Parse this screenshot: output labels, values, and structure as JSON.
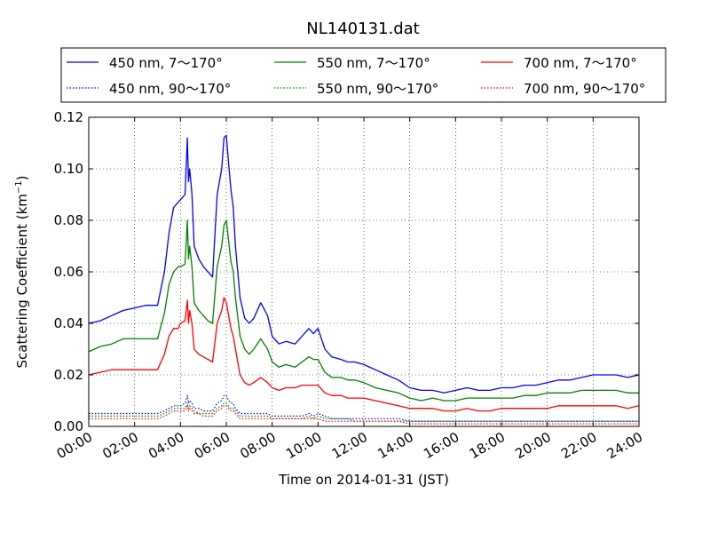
{
  "chart_data": {
    "type": "line",
    "title": "NL140131.dat",
    "xlabel": "Time on 2014-01-31 (JST)",
    "ylabel_main": "Scattering Coefficient (km",
    "ylabel_sup": "−1",
    "ylabel_end": ")",
    "xlim": [
      "00:00",
      "24:00"
    ],
    "ylim": [
      0,
      0.12
    ],
    "grid": true,
    "legend_position": "top, above plot",
    "x_ticks": [
      "00:00",
      "02:00",
      "04:00",
      "06:00",
      "08:00",
      "10:00",
      "12:00",
      "14:00",
      "16:00",
      "18:00",
      "20:00",
      "22:00",
      "24:00"
    ],
    "y_ticks": [
      "0.00",
      "0.02",
      "0.04",
      "0.06",
      "0.08",
      "0.10",
      "0.12"
    ],
    "y_tick_values": [
      0,
      0.02,
      0.04,
      0.06,
      0.08,
      0.1,
      0.12
    ],
    "x_hours": [
      0,
      0.5,
      1,
      1.5,
      2,
      2.5,
      3,
      3.3,
      3.5,
      3.7,
      3.9,
      4,
      4.2,
      4.3,
      4.35,
      4.4,
      4.5,
      4.6,
      4.8,
      5,
      5.2,
      5.4,
      5.6,
      5.8,
      5.9,
      6,
      6.1,
      6.2,
      6.3,
      6.4,
      6.6,
      6.8,
      7,
      7.2,
      7.5,
      7.8,
      8,
      8.3,
      8.6,
      9,
      9.3,
      9.6,
      9.8,
      10,
      10.3,
      10.6,
      11,
      11.3,
      11.6,
      12,
      12.5,
      13,
      13.5,
      14,
      14.5,
      15,
      15.5,
      16,
      16.5,
      17,
      17.5,
      18,
      18.5,
      19,
      19.5,
      20,
      20.5,
      21,
      21.5,
      22,
      22.5,
      23,
      23.5,
      24
    ],
    "series": [
      {
        "name": "450 nm, 7～170°",
        "color": "#0000ff",
        "style": "solid",
        "values": [
          0.04,
          0.041,
          0.043,
          0.045,
          0.046,
          0.047,
          0.047,
          0.06,
          0.075,
          0.085,
          0.087,
          0.088,
          0.09,
          0.112,
          0.095,
          0.1,
          0.09,
          0.07,
          0.065,
          0.062,
          0.06,
          0.058,
          0.09,
          0.1,
          0.112,
          0.113,
          0.102,
          0.092,
          0.085,
          0.07,
          0.05,
          0.042,
          0.04,
          0.042,
          0.048,
          0.043,
          0.035,
          0.032,
          0.033,
          0.032,
          0.035,
          0.038,
          0.036,
          0.038,
          0.03,
          0.027,
          0.026,
          0.025,
          0.025,
          0.024,
          0.022,
          0.02,
          0.018,
          0.015,
          0.014,
          0.014,
          0.013,
          0.014,
          0.015,
          0.014,
          0.014,
          0.015,
          0.015,
          0.016,
          0.016,
          0.017,
          0.018,
          0.018,
          0.019,
          0.02,
          0.02,
          0.02,
          0.019,
          0.02
        ]
      },
      {
        "name": "550 nm, 7～170°",
        "color": "#008000",
        "style": "solid",
        "values": [
          0.029,
          0.031,
          0.032,
          0.034,
          0.034,
          0.034,
          0.034,
          0.044,
          0.055,
          0.06,
          0.062,
          0.062,
          0.063,
          0.08,
          0.065,
          0.07,
          0.062,
          0.048,
          0.045,
          0.043,
          0.041,
          0.04,
          0.062,
          0.07,
          0.078,
          0.08,
          0.072,
          0.064,
          0.06,
          0.05,
          0.035,
          0.03,
          0.028,
          0.03,
          0.034,
          0.03,
          0.025,
          0.023,
          0.024,
          0.023,
          0.025,
          0.027,
          0.026,
          0.026,
          0.021,
          0.019,
          0.019,
          0.018,
          0.018,
          0.017,
          0.015,
          0.014,
          0.013,
          0.011,
          0.01,
          0.011,
          0.01,
          0.01,
          0.011,
          0.011,
          0.011,
          0.011,
          0.011,
          0.012,
          0.012,
          0.013,
          0.013,
          0.013,
          0.014,
          0.014,
          0.014,
          0.014,
          0.013,
          0.013
        ]
      },
      {
        "name": "700 nm, 7～170°",
        "color": "#ff0000",
        "style": "solid",
        "values": [
          0.02,
          0.021,
          0.022,
          0.022,
          0.022,
          0.022,
          0.022,
          0.028,
          0.035,
          0.038,
          0.038,
          0.04,
          0.041,
          0.049,
          0.04,
          0.045,
          0.04,
          0.03,
          0.028,
          0.027,
          0.026,
          0.025,
          0.04,
          0.045,
          0.05,
          0.048,
          0.043,
          0.038,
          0.035,
          0.03,
          0.02,
          0.017,
          0.016,
          0.017,
          0.019,
          0.017,
          0.015,
          0.014,
          0.015,
          0.015,
          0.016,
          0.016,
          0.016,
          0.016,
          0.013,
          0.012,
          0.012,
          0.011,
          0.011,
          0.011,
          0.01,
          0.009,
          0.008,
          0.007,
          0.007,
          0.007,
          0.006,
          0.006,
          0.007,
          0.006,
          0.006,
          0.007,
          0.007,
          0.007,
          0.007,
          0.007,
          0.008,
          0.008,
          0.008,
          0.008,
          0.008,
          0.008,
          0.007,
          0.008
        ]
      },
      {
        "name": "450 nm, 90～170°",
        "color": "#0000ff",
        "style": "dotted",
        "values": [
          0.005,
          0.005,
          0.005,
          0.005,
          0.005,
          0.005,
          0.005,
          0.006,
          0.007,
          0.008,
          0.008,
          0.008,
          0.009,
          0.012,
          0.009,
          0.01,
          0.009,
          0.007,
          0.007,
          0.006,
          0.006,
          0.006,
          0.009,
          0.01,
          0.012,
          0.012,
          0.01,
          0.009,
          0.009,
          0.007,
          0.005,
          0.005,
          0.005,
          0.005,
          0.005,
          0.005,
          0.004,
          0.004,
          0.004,
          0.004,
          0.004,
          0.005,
          0.004,
          0.005,
          0.004,
          0.003,
          0.003,
          0.003,
          0.003,
          0.003,
          0.003,
          0.003,
          0.003,
          0.002,
          0.002,
          0.002,
          0.002,
          0.002,
          0.002,
          0.002,
          0.002,
          0.002,
          0.002,
          0.002,
          0.002,
          0.002,
          0.002,
          0.002,
          0.002,
          0.002,
          0.002,
          0.002,
          0.002,
          0.002
        ]
      },
      {
        "name": "550 nm, 90～170°",
        "color": "#008000",
        "style": "dotted",
        "values": [
          0.004,
          0.004,
          0.004,
          0.004,
          0.004,
          0.004,
          0.004,
          0.005,
          0.006,
          0.007,
          0.007,
          0.007,
          0.007,
          0.009,
          0.007,
          0.008,
          0.007,
          0.006,
          0.005,
          0.005,
          0.005,
          0.005,
          0.007,
          0.008,
          0.009,
          0.009,
          0.008,
          0.007,
          0.007,
          0.006,
          0.004,
          0.004,
          0.004,
          0.004,
          0.004,
          0.004,
          0.003,
          0.003,
          0.003,
          0.003,
          0.003,
          0.004,
          0.003,
          0.004,
          0.003,
          0.003,
          0.003,
          0.003,
          0.002,
          0.002,
          0.002,
          0.002,
          0.002,
          0.002,
          0.002,
          0.002,
          0.002,
          0.002,
          0.002,
          0.002,
          0.002,
          0.002,
          0.002,
          0.002,
          0.002,
          0.002,
          0.002,
          0.002,
          0.002,
          0.002,
          0.002,
          0.002,
          0.002,
          0.002
        ]
      },
      {
        "name": "700 nm, 90～170°",
        "color": "#ff0000",
        "style": "dotted",
        "values": [
          0.003,
          0.003,
          0.003,
          0.003,
          0.003,
          0.003,
          0.003,
          0.004,
          0.005,
          0.006,
          0.006,
          0.006,
          0.006,
          0.008,
          0.006,
          0.007,
          0.006,
          0.005,
          0.005,
          0.004,
          0.004,
          0.004,
          0.006,
          0.007,
          0.008,
          0.008,
          0.007,
          0.006,
          0.006,
          0.005,
          0.003,
          0.003,
          0.003,
          0.003,
          0.003,
          0.003,
          0.003,
          0.003,
          0.003,
          0.003,
          0.003,
          0.003,
          0.003,
          0.003,
          0.002,
          0.002,
          0.002,
          0.002,
          0.002,
          0.002,
          0.002,
          0.002,
          0.002,
          0.001,
          0.001,
          0.001,
          0.001,
          0.001,
          0.001,
          0.001,
          0.001,
          0.001,
          0.001,
          0.001,
          0.001,
          0.001,
          0.001,
          0.001,
          0.001,
          0.001,
          0.001,
          0.001,
          0.001,
          0.001
        ]
      }
    ]
  },
  "legend_order": [
    0,
    1,
    2,
    3,
    4,
    5
  ]
}
